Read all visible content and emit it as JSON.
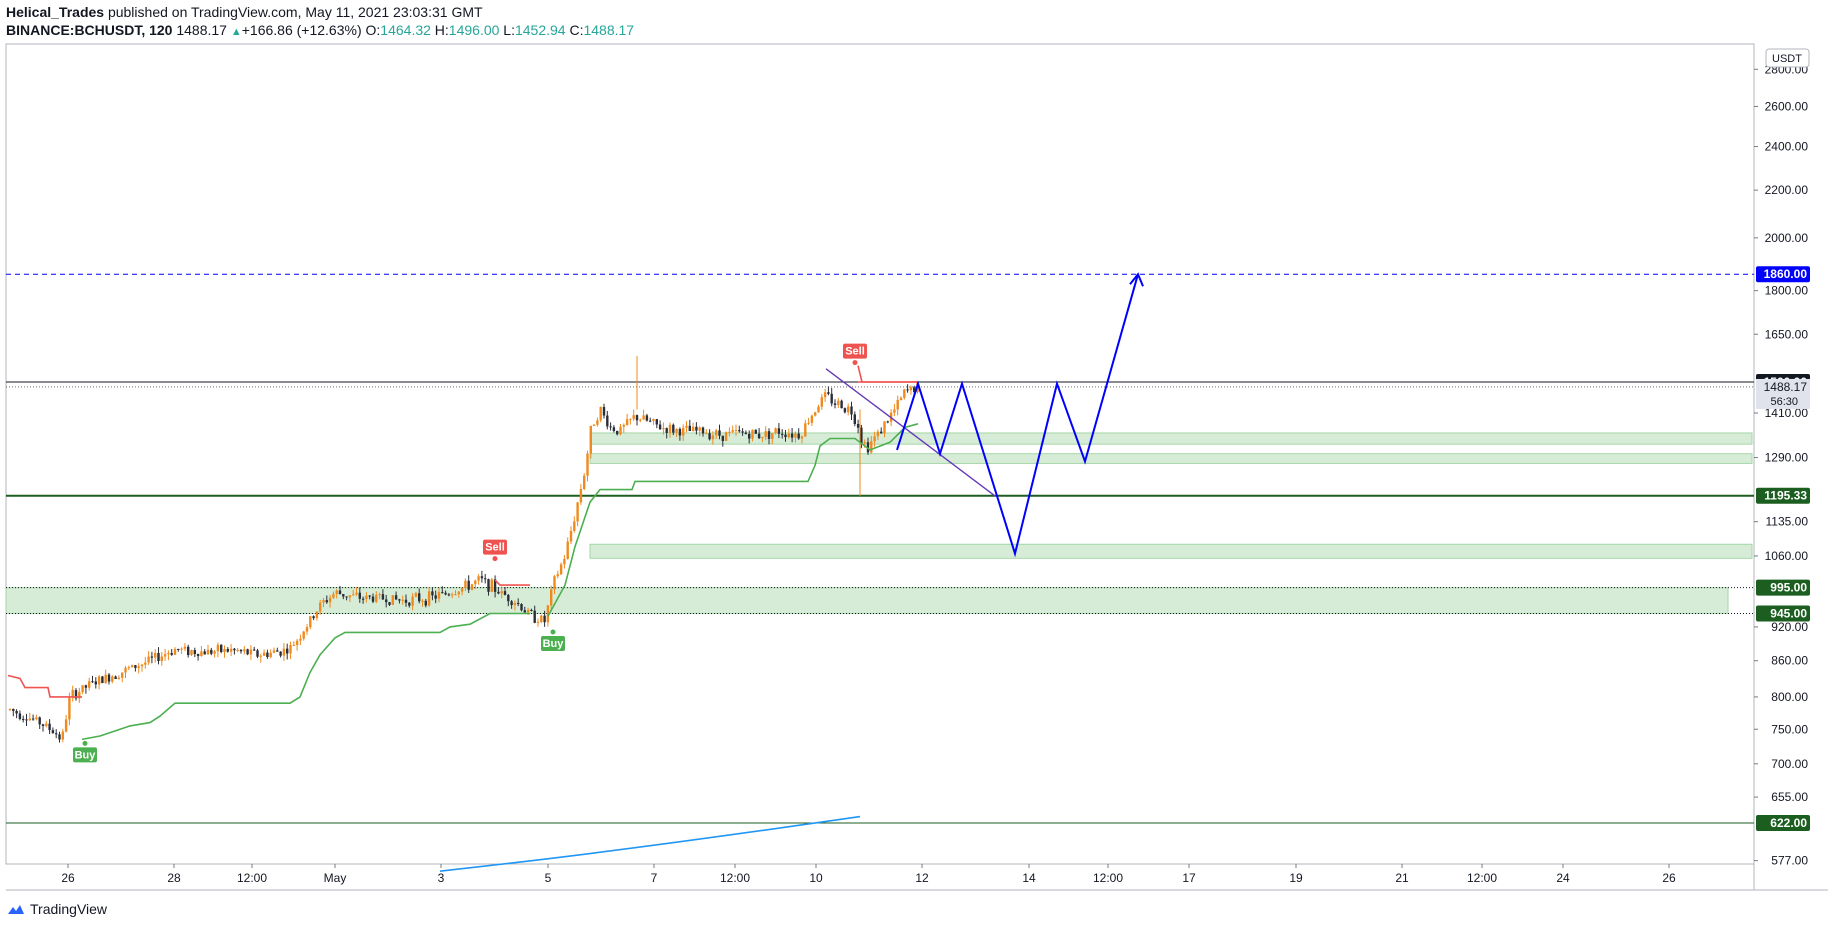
{
  "header": {
    "author": "Helical_Trades",
    "published": "published on TradingView.com, May 11, 2021 23:03:31 GMT",
    "symbol": "BINANCE:BCHUSDT, 120",
    "last": "1488.17",
    "change": "+166.86 (+12.63%)",
    "o_label": "O:",
    "o": "1464.32",
    "h_label": "H:",
    "h": "1496.00",
    "l_label": "L:",
    "l": "1452.94",
    "c_label": "C:",
    "c": "1488.17"
  },
  "footer": {
    "brand": "TradingView"
  },
  "colors": {
    "up": "#ef8b1e",
    "down": "#2a2e39",
    "supertrend_up": "#4caf50",
    "supertrend_down": "#ef5350",
    "projection": "#0000ff",
    "zone": "#c8e6c9",
    "trendline": "#673ab7",
    "ma": "#2196f3"
  },
  "chart_data": {
    "type": "candlestick",
    "symbol": "BINANCE:BCHUSDT",
    "interval": "120",
    "y_scale": "log",
    "y_axis": {
      "unit_label": "USDT",
      "ticks": [
        "2800.00",
        "2600.00",
        "2400.00",
        "2200.00",
        "2000.00",
        "1800.00",
        "1650.00",
        "1410.00",
        "1290.00",
        "1135.00",
        "1060.00",
        "920.00",
        "860.00",
        "800.00",
        "750.00",
        "700.00",
        "655.00",
        "577.00"
      ],
      "badges": [
        {
          "label": "1860.00",
          "value": 1860,
          "bg": "#0000ff"
        },
        {
          "label": "1500.00",
          "value": 1500,
          "bg": "#131722"
        },
        {
          "label": "1195.33",
          "value": 1195.33,
          "bg": "#1b5e20"
        },
        {
          "label": "995.00",
          "value": 995,
          "bg": "#1b5e20"
        },
        {
          "label": "945.00",
          "value": 945,
          "bg": "#1b5e20"
        },
        {
          "label": "622.00",
          "value": 622,
          "bg": "#1b5e20"
        }
      ],
      "last_price": {
        "label": "1488.17",
        "countdown": "56:30",
        "value": 1488.17
      }
    },
    "x_axis": {
      "ticks": [
        "26",
        "28",
        "12:00",
        "May",
        "3",
        "5",
        "7",
        "12:00",
        "10",
        "12",
        "14",
        "12:00",
        "17",
        "19",
        "21",
        "12:00",
        "24",
        "26"
      ]
    },
    "horizontal_levels": [
      {
        "value": 1860,
        "style": "dashed",
        "color": "#0000ff"
      },
      {
        "value": 1500,
        "style": "solid",
        "color": "#131722"
      },
      {
        "value": 1195.33,
        "style": "solid",
        "color": "#1b5e20"
      },
      {
        "value": 995,
        "style": "dotted",
        "color": "#131722"
      },
      {
        "value": 945,
        "style": "dotted",
        "color": "#131722"
      },
      {
        "value": 622,
        "style": "solid",
        "color": "#1b5e20"
      }
    ],
    "zones": [
      {
        "low": 945,
        "high": 995
      },
      {
        "low": 1055,
        "high": 1085
      },
      {
        "low": 1275,
        "high": 1300
      },
      {
        "low": 1325,
        "high": 1355
      }
    ],
    "signals": [
      {
        "label": "Buy",
        "type": "buy",
        "date": "Apr 26",
        "price": 735
      },
      {
        "label": "Sell",
        "type": "sell",
        "date": "May 4",
        "price": 1048
      },
      {
        "label": "Buy",
        "type": "buy",
        "date": "May 5",
        "price": 918
      },
      {
        "label": "Sell",
        "type": "sell",
        "date": "May 10",
        "price": 1550
      }
    ],
    "projection_path": [
      1310,
      1495,
      1300,
      1495,
      1065,
      1495,
      1280,
      1860
    ],
    "candles_summary": {
      "start": {
        "date": "Apr 25",
        "price": 780
      },
      "low": 717,
      "high": 1580,
      "last": 1488.17
    }
  }
}
